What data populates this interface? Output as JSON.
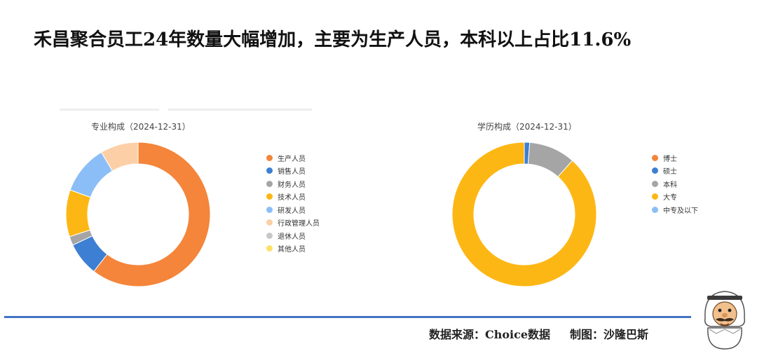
{
  "headline": "禾昌聚合员工24年数量大幅增加，主要为生产人员，本科以上占比11.6%",
  "footer": {
    "source": "数据来源：Choice数据",
    "maker": "制图：沙隆巴斯"
  },
  "chart_data": [
    {
      "type": "pie",
      "variant": "donut",
      "title": "专业构成（2024-12-31）",
      "legend_position": "right",
      "categories": [
        "生产人员",
        "销售人员",
        "财务人员",
        "技术人员",
        "研发人员",
        "行政管理人员",
        "退休人员",
        "其他人员"
      ],
      "values": [
        60.5,
        7.5,
        2.0,
        10.5,
        11.0,
        8.5,
        0,
        0
      ],
      "unit": "%",
      "colors": [
        "#f4853a",
        "#3d7fd2",
        "#a5a5a5",
        "#fdb714",
        "#8bbef7",
        "#fdcfa6",
        "#c8c8c8",
        "#fde065"
      ]
    },
    {
      "type": "pie",
      "variant": "donut",
      "title": "学历构成（2024-12-31）",
      "legend_position": "right",
      "categories": [
        "博士",
        "硕士",
        "本科",
        "大专",
        "中专及以下"
      ],
      "values": [
        0,
        1.2,
        10.4,
        88.4,
        0
      ],
      "unit": "%",
      "colors": [
        "#f4853a",
        "#3d7fd2",
        "#a5a5a5",
        "#fdb714",
        "#8bbef7"
      ]
    }
  ]
}
